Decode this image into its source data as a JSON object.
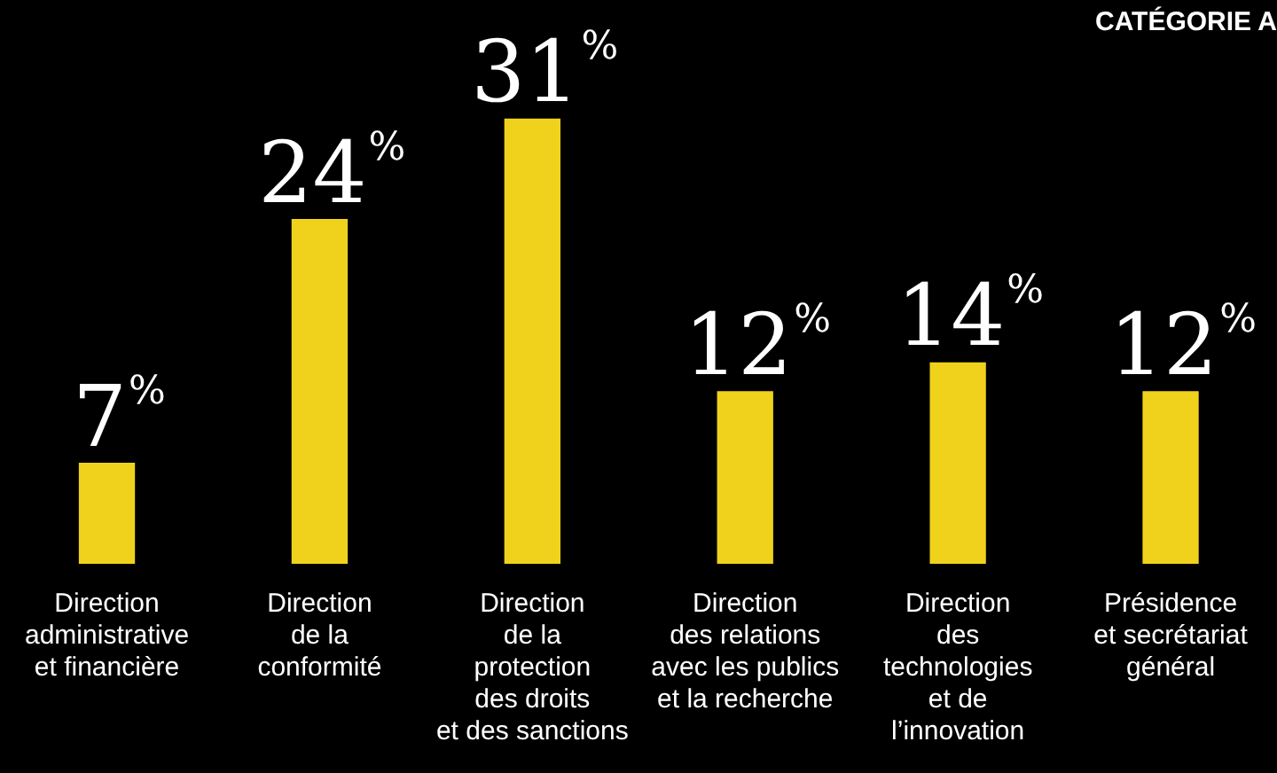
{
  "chart_data": {
    "type": "bar",
    "title": "CATÉGORIE A",
    "categories": [
      "Direction\nadministrative\net financière",
      "Direction\nde la\nconformité",
      "Direction\nde la\nprotection\ndes droits\net des sanctions",
      "Direction\ndes relations\navec les publics\net la recherche",
      "Direction\ndes\ntechnologies\net de\nl’innovation",
      "Présidence\net secrétariat\ngénéral"
    ],
    "values": [
      7,
      24,
      31,
      12,
      14,
      12
    ],
    "value_labels": [
      "7%",
      "24%",
      "31%",
      "12%",
      "14%",
      "12%"
    ],
    "color": "#f0d21c"
  }
}
